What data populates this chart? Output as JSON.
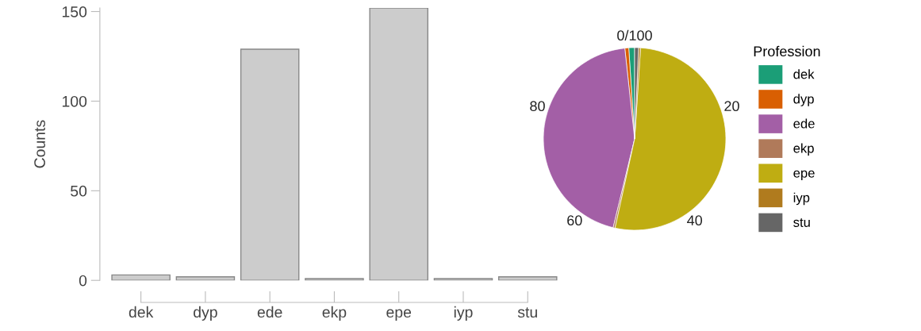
{
  "chart_data": [
    {
      "type": "bar",
      "ylabel": "Counts",
      "categories": [
        "dek",
        "dyp",
        "ede",
        "ekp",
        "epe",
        "iyp",
        "stu"
      ],
      "values": [
        3,
        2,
        129,
        1,
        152,
        1,
        2
      ],
      "color": "#cccccc",
      "ylim": [
        0,
        152
      ],
      "yticks": [
        0,
        50,
        100,
        150
      ],
      "grid": false
    },
    {
      "type": "pie",
      "legend_title": "Profession",
      "legend": "right",
      "categories": [
        "dek",
        "dyp",
        "ede",
        "ekp",
        "epe",
        "iyp",
        "stu"
      ],
      "values": [
        1.03,
        0.69,
        44.5,
        0.34,
        52.41,
        0.34,
        0.69
      ],
      "colors": [
        "#1b9e77",
        "#d95f02",
        "#a35fa6",
        "#b07a5a",
        "#bfad12",
        "#b07b1e",
        "#666666"
      ],
      "annotations": [
        "0/100",
        "20",
        "40",
        "60",
        "80"
      ]
    }
  ]
}
